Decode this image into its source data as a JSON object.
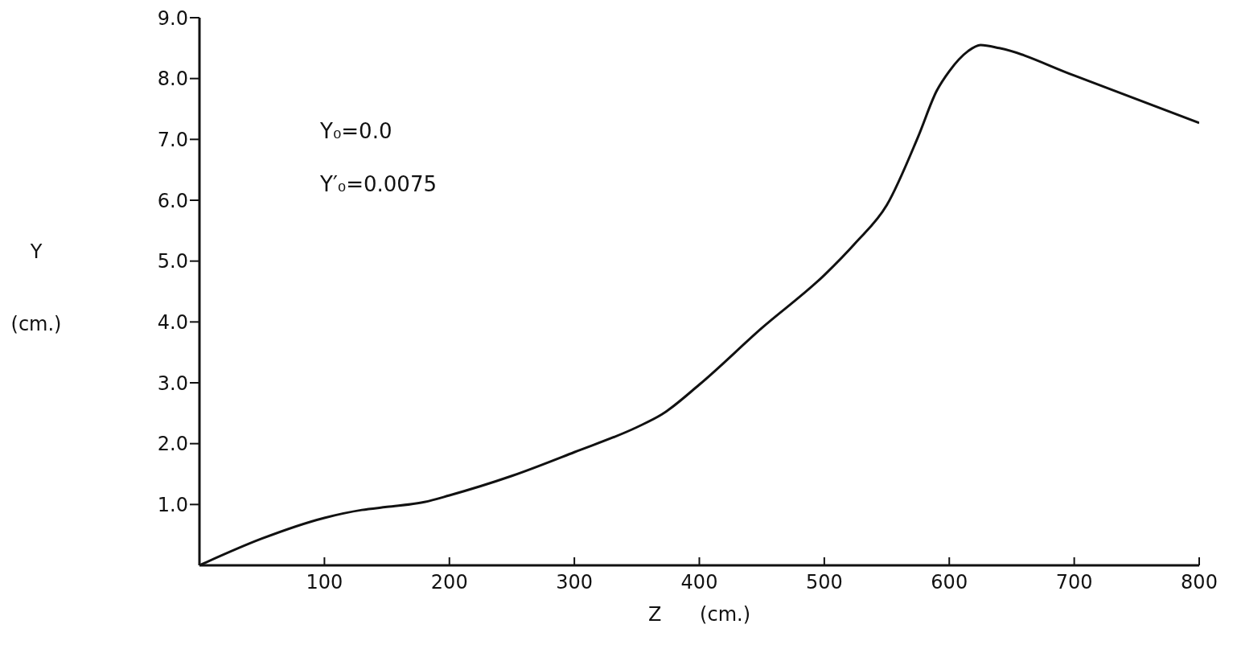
{
  "chart_data": {
    "type": "line",
    "xlabel": "Z (cm.)",
    "ylabel": "Y (cm.)",
    "annotations": [
      "Y₀=0.0",
      "Y′₀=0.0075"
    ],
    "x": [
      0,
      50,
      100,
      130,
      150,
      180,
      200,
      250,
      300,
      350,
      370,
      400,
      450,
      500,
      525,
      550,
      575,
      590,
      600,
      615,
      625,
      640,
      700,
      800
    ],
    "series": [
      {
        "color": "#111111",
        "values": [
          0,
          0.44,
          0.78,
          0.91,
          0.96,
          1.04,
          1.15,
          1.47,
          1.86,
          2.27,
          2.48,
          2.97,
          3.9,
          4.77,
          5.3,
          5.92,
          7.04,
          7.8,
          8.12,
          8.45,
          8.55,
          8.5,
          8.05,
          7.27
        ]
      }
    ],
    "xlim": [
      0,
      800
    ],
    "xticks": [
      100,
      200,
      300,
      400,
      500,
      600,
      700,
      800
    ],
    "ylim": [
      0,
      9
    ],
    "yticks": [
      {
        "value": 1,
        "label": "1.0"
      },
      {
        "value": 2,
        "label": "2.0"
      },
      {
        "value": 3,
        "label": "3.0"
      },
      {
        "value": 4,
        "label": "4.0"
      },
      {
        "value": 5,
        "label": "5.0"
      },
      {
        "value": 6,
        "label": "6.0"
      },
      {
        "value": 7,
        "label": "7.0"
      },
      {
        "value": 8,
        "label": "8.0"
      },
      {
        "value": 9,
        "label": "9.0"
      }
    ],
    "grid": false,
    "legend": false,
    "marker": "none",
    "line_style": "solid"
  }
}
